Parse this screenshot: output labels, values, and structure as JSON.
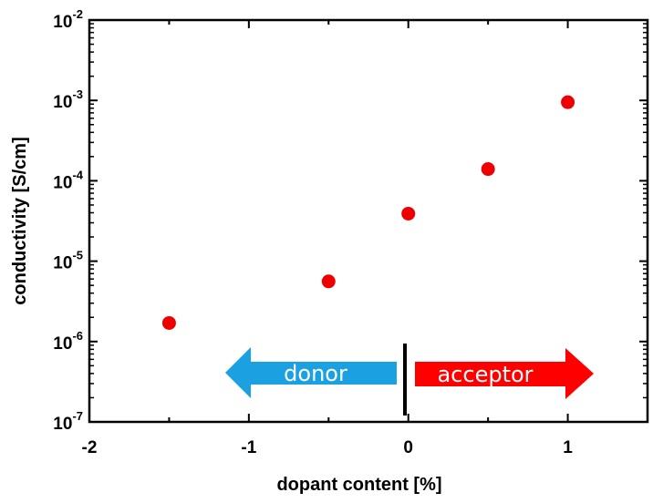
{
  "chart_data": {
    "type": "scatter",
    "xlabel": "dopant content [%]",
    "ylabel": "conductivity [S/cm]",
    "xlim": [
      -2,
      1.5
    ],
    "ylim": [
      1e-07,
      0.01
    ],
    "y_scale": "log",
    "x_ticks": [
      -2,
      -1,
      0,
      1
    ],
    "x_tick_labels": [
      "-2",
      "-1",
      "0",
      "1"
    ],
    "y_tick_exponents": [
      -7,
      -6,
      -5,
      -4,
      -3,
      -2
    ],
    "y_tick_base": "10",
    "y_tick_exponent_labels": [
      "-7",
      "-6",
      "-5",
      "-4",
      "-3",
      "-2"
    ],
    "points": [
      {
        "x": -1.5,
        "y": 1.7e-06
      },
      {
        "x": -0.5,
        "y": 5.6e-06
      },
      {
        "x": 0,
        "y": 3.9e-05
      },
      {
        "x": 0.5,
        "y": 0.00014
      },
      {
        "x": 1,
        "y": 0.00095
      }
    ],
    "marker_color": "#ee0000",
    "grid": false
  },
  "annotations": {
    "donor": {
      "label": "donor",
      "color": "#1ba1e2"
    },
    "acceptor": {
      "label": "acceptor",
      "color": "#ff0000"
    }
  }
}
